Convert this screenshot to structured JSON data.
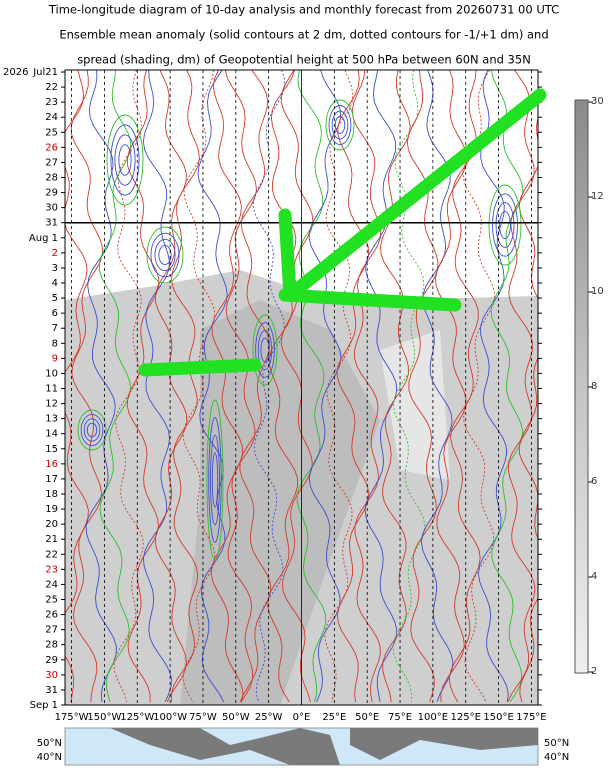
{
  "chart_data": {
    "type": "hovmoller",
    "title": [
      "Time-longitude diagram of 10-day analysis and monthly forecast from 20260731 00 UTC",
      "Ensemble mean anomaly (solid contours at 2 dm, dotted contours for -1/+1 dm) and",
      "spread (shading, dm) of Geopotential height at 500 hPa between 60N and 35N"
    ],
    "year": "2026",
    "categories": [
      "Jul21",
      "22",
      "23",
      "24",
      "25",
      "26",
      "27",
      "28",
      "29",
      "30",
      "31",
      "Aug 1",
      "2",
      "3",
      "4",
      "5",
      "6",
      "7",
      "8",
      "9",
      "10",
      "11",
      "12",
      "13",
      "14",
      "15",
      "16",
      "17",
      "18",
      "19",
      "20",
      "21",
      "22",
      "23",
      "24",
      "25",
      "26",
      "27",
      "28",
      "29",
      "30",
      "31",
      "Sep 1"
    ],
    "label_colors": [
      "#000",
      "#000",
      "#000",
      "#000",
      "#000",
      "#c00",
      "#000",
      "#000",
      "#000",
      "#000",
      "#000",
      "#000",
      "#c00",
      "#000",
      "#000",
      "#000",
      "#000",
      "#000",
      "#000",
      "#c00",
      "#000",
      "#000",
      "#000",
      "#000",
      "#000",
      "#000",
      "#c00",
      "#000",
      "#000",
      "#000",
      "#000",
      "#000",
      "#000",
      "#c00",
      "#000",
      "#000",
      "#000",
      "#000",
      "#000",
      "#000",
      "#c00",
      "#000",
      "#000"
    ],
    "xlim": [
      -180,
      180
    ],
    "xticks": [
      {
        "value": -175,
        "label": "175°W"
      },
      {
        "value": -150,
        "label": "150°W"
      },
      {
        "value": -125,
        "label": "125°W"
      },
      {
        "value": -100,
        "label": "100°W"
      },
      {
        "value": -75,
        "label": "75°W"
      },
      {
        "value": -50,
        "label": "50°W"
      },
      {
        "value": -25,
        "label": "25°W"
      },
      {
        "value": 0,
        "label": "0°E"
      },
      {
        "value": 25,
        "label": "25°E"
      },
      {
        "value": 50,
        "label": "50°E"
      },
      {
        "value": 75,
        "label": "75°E"
      },
      {
        "value": 100,
        "label": "100°E"
      },
      {
        "value": 125,
        "label": "125°E"
      },
      {
        "value": 150,
        "label": "150°E"
      },
      {
        "value": 175,
        "label": "175°E"
      }
    ],
    "colorbar_ticks": [
      2,
      4,
      6,
      8,
      10,
      12,
      30
    ],
    "map_labels": [
      "50°N",
      "40°N"
    ]
  }
}
